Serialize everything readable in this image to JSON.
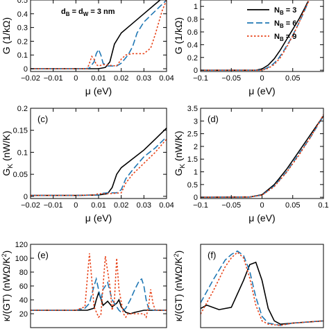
{
  "series_styles": [
    {
      "name": "N_B = 3",
      "color": "#000000",
      "dash": ""
    },
    {
      "name": "N_B = 6",
      "color": "#1f77b4",
      "dash": "9,4"
    },
    {
      "name": "N_B = 9",
      "color": "#e8441a",
      "dash": "2.5,2.5"
    }
  ],
  "legend": {
    "placement": "top-right of panel (b)",
    "entries": [
      {
        "base": "N",
        "sub": "B",
        "rest": " = 3"
      },
      {
        "base": "N",
        "sub": "B",
        "rest": " = 6"
      },
      {
        "base": "N",
        "sub": "B",
        "rest": " = 9"
      }
    ]
  },
  "annotation": {
    "d1": "d",
    "s1": "B",
    "mid": " = d",
    "s2": "W",
    "tail": " = 3 nm"
  },
  "chart_data": [
    {
      "id": "a",
      "type": "line",
      "panel_label": "",
      "xlabel": "μ (eV)",
      "ylabel": {
        "base": "G",
        "sub": "",
        "rest": " (1/kΩ)"
      },
      "xlim": [
        -0.02,
        0.04
      ],
      "ylim": [
        -0.02,
        0.5
      ],
      "xticks": [
        "-0.02",
        "-0.01",
        "0",
        "0.01",
        "0.02",
        "0.03",
        "0.04"
      ],
      "xtick_values": [
        -0.02,
        -0.01,
        0,
        0.01,
        0.02,
        0.03,
        0.04
      ],
      "yticks": [
        "0",
        "0.1",
        "0.2",
        "0.3",
        "0.4",
        "0.5"
      ],
      "ytick_values": [
        0,
        0.1,
        0.2,
        0.3,
        0.4,
        0.5
      ],
      "series": [
        {
          "x": [
            -0.02,
            0.0,
            0.01,
            0.013,
            0.015,
            0.017,
            0.02,
            0.025,
            0.03,
            0.035,
            0.04
          ],
          "y": [
            0,
            0,
            0,
            0.01,
            0.05,
            0.18,
            0.26,
            0.33,
            0.4,
            0.47,
            0.54
          ]
        },
        {
          "x": [
            -0.02,
            0.004,
            0.006,
            0.008,
            0.009,
            0.01,
            0.011,
            0.012,
            0.014,
            0.018,
            0.02,
            0.023,
            0.025,
            0.027,
            0.03,
            0.035,
            0.04
          ],
          "y": [
            0,
            0,
            0.005,
            0.05,
            0.11,
            0.14,
            0.1,
            0.04,
            0.02,
            0.02,
            0.04,
            0.1,
            0.16,
            0.26,
            0.34,
            0.42,
            0.5
          ]
        },
        {
          "x": [
            -0.02,
            0.005,
            0.006,
            0.007,
            0.008,
            0.009,
            0.01,
            0.012,
            0.018,
            0.02,
            0.022,
            0.025,
            0.03,
            0.033,
            0.035,
            0.038,
            0.04
          ],
          "y": [
            0,
            0,
            0.04,
            0.09,
            0.07,
            0.03,
            0.02,
            0.03,
            0.02,
            0.07,
            0.1,
            0.11,
            0.11,
            0.15,
            0.25,
            0.42,
            0.5
          ]
        }
      ]
    },
    {
      "id": "b",
      "type": "line",
      "panel_label": "",
      "xlabel": "μ (eV)",
      "ylabel": {
        "base": "G",
        "sub": "",
        "rest": " (1/kΩ)"
      },
      "xlim": [
        -0.1,
        0.1
      ],
      "ylim": [
        -0.02,
        1.1
      ],
      "xticks": [
        "-0.1",
        "-0.05",
        "0",
        "0.05"
      ],
      "xtick_values": [
        -0.1,
        -0.05,
        0,
        0.05
      ],
      "yticks": [
        "0",
        "0.2",
        "0.4",
        "0.6",
        "0.8",
        "1"
      ],
      "ytick_values": [
        0,
        0.2,
        0.4,
        0.6,
        0.8,
        1
      ],
      "series": [
        {
          "x": [
            -0.1,
            -0.01,
            0.0,
            0.01,
            0.02,
            0.03,
            0.04,
            0.05,
            0.06,
            0.07,
            0.075
          ],
          "y": [
            0,
            0,
            0.02,
            0.08,
            0.18,
            0.32,
            0.48,
            0.64,
            0.8,
            0.98,
            1.08
          ]
        },
        {
          "x": [
            -0.1,
            -0.005,
            0.005,
            0.015,
            0.025,
            0.035,
            0.045,
            0.055,
            0.065,
            0.075
          ],
          "y": [
            0,
            0,
            0.02,
            0.07,
            0.16,
            0.3,
            0.46,
            0.64,
            0.84,
            1.06
          ]
        },
        {
          "x": [
            -0.1,
            0.0,
            0.01,
            0.02,
            0.03,
            0.04,
            0.05,
            0.06,
            0.07,
            0.076
          ],
          "y": [
            0,
            0,
            0.03,
            0.09,
            0.2,
            0.36,
            0.54,
            0.74,
            0.96,
            1.08
          ]
        }
      ]
    },
    {
      "id": "c",
      "type": "line",
      "panel_label": "(c)",
      "xlabel": "μ (eV)",
      "ylabel": {
        "base": "G",
        "sub": "K",
        "rest": " (nW/K)"
      },
      "xlim": [
        -0.02,
        0.04
      ],
      "ylim": [
        -0.005,
        0.2
      ],
      "xticks": [
        "-0.02",
        "-0.01",
        "0",
        "0.01",
        "0.02",
        "0.03",
        "0.04"
      ],
      "xtick_values": [
        -0.02,
        -0.01,
        0,
        0.01,
        0.02,
        0.03,
        0.04
      ],
      "yticks": [
        "0",
        "0.05",
        "0.1",
        "0.15",
        "0.2"
      ],
      "ytick_values": [
        0,
        0.05,
        0.1,
        0.15,
        0.2
      ],
      "series": [
        {
          "x": [
            -0.02,
            0.0,
            0.01,
            0.014,
            0.016,
            0.018,
            0.02,
            0.025,
            0.03,
            0.035,
            0.04
          ],
          "y": [
            0.002,
            0.002,
            0.003,
            0.006,
            0.02,
            0.05,
            0.065,
            0.085,
            0.105,
            0.13,
            0.155
          ]
        },
        {
          "x": [
            -0.02,
            0.0,
            0.01,
            0.012,
            0.014,
            0.018,
            0.02,
            0.022,
            0.025,
            0.03,
            0.035,
            0.04
          ],
          "y": [
            0.002,
            0.002,
            0.003,
            0.007,
            0.008,
            0.008,
            0.015,
            0.04,
            0.06,
            0.09,
            0.11,
            0.135
          ]
        },
        {
          "x": [
            -0.02,
            0.0,
            0.008,
            0.01,
            0.015,
            0.02,
            0.022,
            0.025,
            0.03,
            0.035,
            0.04
          ],
          "y": [
            0.002,
            0.002,
            0.003,
            0.006,
            0.006,
            0.008,
            0.03,
            0.05,
            0.075,
            0.1,
            0.13
          ]
        }
      ]
    },
    {
      "id": "d",
      "type": "line",
      "panel_label": "(d)",
      "xlabel": "μ (eV)",
      "ylabel": {
        "base": "G",
        "sub": "K",
        "rest": " (nW/K)"
      },
      "xlim": [
        -0.1,
        0.1
      ],
      "ylim": [
        -0.05,
        3.5
      ],
      "xticks": [
        "-0.1",
        "-0.05",
        "0",
        "0.05",
        "0.1"
      ],
      "xtick_values": [
        -0.1,
        -0.05,
        0,
        0.05,
        0.1
      ],
      "yticks": [
        "0",
        "0.5",
        "1",
        "1.5",
        "2",
        "2.5",
        "3",
        "3.5"
      ],
      "ytick_values": [
        0,
        0.5,
        1,
        1.5,
        2,
        2.5,
        3,
        3.5
      ],
      "series": [
        {
          "x": [
            -0.1,
            -0.02,
            0.0,
            0.02,
            0.04,
            0.06,
            0.08,
            0.1
          ],
          "y": [
            0,
            0.01,
            0.1,
            0.5,
            1.1,
            1.8,
            2.5,
            3.2
          ]
        },
        {
          "x": [
            -0.1,
            -0.02,
            0.0,
            0.02,
            0.04,
            0.06,
            0.08,
            0.1
          ],
          "y": [
            0,
            0.01,
            0.08,
            0.45,
            1.0,
            1.7,
            2.4,
            3.2
          ]
        },
        {
          "x": [
            -0.1,
            -0.02,
            0.0,
            0.02,
            0.04,
            0.06,
            0.08,
            0.1
          ],
          "y": [
            0,
            0.01,
            0.08,
            0.42,
            0.98,
            1.65,
            2.4,
            3.25
          ]
        }
      ]
    },
    {
      "id": "e",
      "type": "line",
      "panel_label": "(e)",
      "xlabel": "",
      "ylabel": {
        "base": "κ",
        "sub": "",
        "rest": "/(GT) (nWΩ/K",
        "sup": "2",
        "tail": ")"
      },
      "xlim": [
        -0.02,
        0.04
      ],
      "ylim": [
        0,
        120
      ],
      "xticks": [],
      "xtick_values": [],
      "yticks": [
        "20",
        "40",
        "60",
        "80",
        "100",
        "120"
      ],
      "ytick_values": [
        20,
        40,
        60,
        80,
        100,
        120
      ],
      "series": [
        {
          "x": [
            -0.02,
            0.0,
            0.005,
            0.008,
            0.009,
            0.01,
            0.011,
            0.012,
            0.014,
            0.016,
            0.018,
            0.019,
            0.02,
            0.022,
            0.024,
            0.026,
            0.03,
            0.04
          ],
          "y": [
            25,
            25,
            25,
            28,
            40,
            50,
            42,
            32,
            38,
            30,
            35,
            40,
            30,
            22,
            20,
            22,
            25,
            25
          ]
        },
        {
          "x": [
            -0.02,
            0.0,
            0.004,
            0.006,
            0.008,
            0.009,
            0.01,
            0.011,
            0.012,
            0.014,
            0.016,
            0.018,
            0.019,
            0.02,
            0.022,
            0.024,
            0.026,
            0.028,
            0.029,
            0.03,
            0.031,
            0.032,
            0.034,
            0.04
          ],
          "y": [
            25,
            25,
            28,
            35,
            60,
            70,
            55,
            40,
            55,
            65,
            40,
            30,
            25,
            22,
            28,
            40,
            55,
            68,
            70,
            60,
            40,
            28,
            25,
            25
          ]
        },
        {
          "x": [
            -0.02,
            0.0,
            0.004,
            0.005,
            0.006,
            0.007,
            0.008,
            0.01,
            0.011,
            0.012,
            0.013,
            0.015,
            0.016,
            0.017,
            0.018,
            0.019,
            0.021,
            0.022,
            0.023,
            0.025,
            0.03,
            0.031,
            0.032,
            0.033,
            0.034,
            0.035,
            0.04
          ],
          "y": [
            25,
            25,
            30,
            70,
            107,
            70,
            30,
            15,
            18,
            60,
            103,
            60,
            25,
            40,
            100,
            55,
            20,
            15,
            20,
            20,
            20,
            15,
            30,
            55,
            35,
            25,
            25
          ]
        }
      ]
    },
    {
      "id": "f",
      "type": "line",
      "panel_label": "(f)",
      "xlabel": "",
      "ylabel": {
        "base": "κ",
        "sub": "",
        "rest": "/(GT) (nWΩ/K",
        "sup": "2",
        "tail": ")"
      },
      "xlim": [
        -0.1,
        0.1
      ],
      "ylim": [
        18,
        92
      ],
      "xticks": [],
      "xtick_values": [],
      "yticks": [],
      "ytick_values": [],
      "series": [
        {
          "x": [
            -0.1,
            -0.09,
            -0.07,
            -0.05,
            -0.03,
            -0.02,
            -0.01,
            0.0,
            0.01,
            0.02,
            0.03,
            0.05,
            0.1
          ],
          "y": [
            35,
            38,
            34,
            36,
            60,
            74,
            76,
            60,
            35,
            24,
            21,
            22,
            24
          ]
        },
        {
          "x": [
            -0.1,
            -0.08,
            -0.06,
            -0.05,
            -0.04,
            -0.03,
            -0.02,
            -0.01,
            0.0,
            0.01,
            0.03,
            0.05,
            0.1
          ],
          "y": [
            40,
            60,
            78,
            83,
            86,
            82,
            68,
            45,
            28,
            22,
            20,
            22,
            24
          ]
        },
        {
          "x": [
            -0.1,
            -0.08,
            -0.06,
            -0.05,
            -0.04,
            -0.03,
            -0.02,
            -0.01,
            0.0,
            0.01,
            0.03,
            0.05,
            0.1
          ],
          "y": [
            30,
            50,
            72,
            80,
            85,
            80,
            62,
            38,
            24,
            21,
            20,
            22,
            24
          ]
        }
      ]
    }
  ]
}
